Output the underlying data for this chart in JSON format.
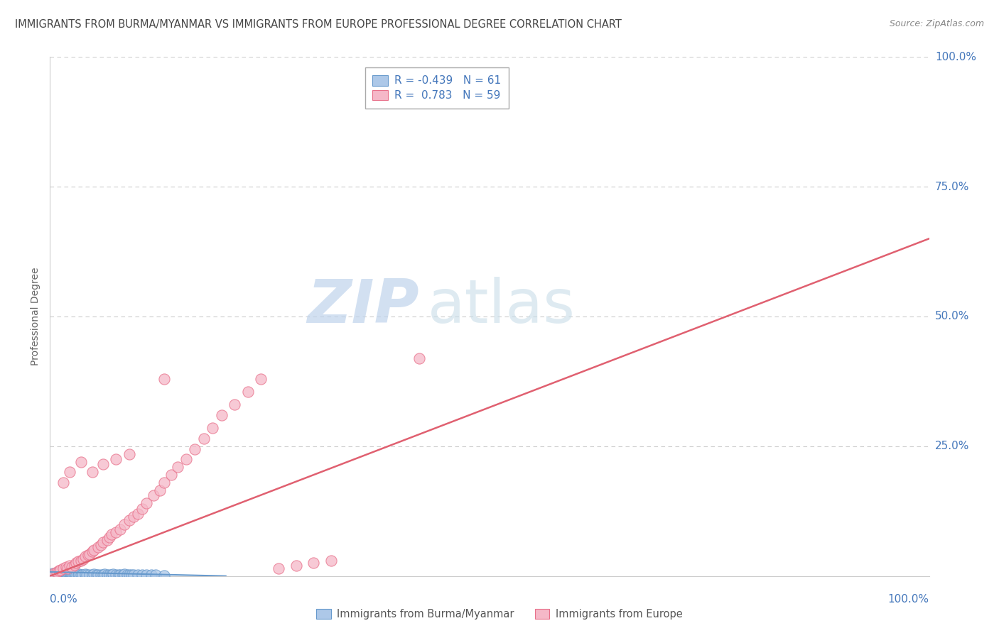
{
  "title": "IMMIGRANTS FROM BURMA/MYANMAR VS IMMIGRANTS FROM EUROPE PROFESSIONAL DEGREE CORRELATION CHART",
  "source": "Source: ZipAtlas.com",
  "ylabel": "Professional Degree",
  "legend_label_blue": "Immigrants from Burma/Myanmar",
  "legend_label_pink": "Immigrants from Europe",
  "R_blue": -0.439,
  "N_blue": 61,
  "R_pink": 0.783,
  "N_pink": 59,
  "blue_fill_color": "#adc8e8",
  "blue_edge_color": "#6699cc",
  "pink_fill_color": "#f5b8c8",
  "pink_edge_color": "#e8708a",
  "pink_line_color": "#e06070",
  "blue_line_color": "#6699cc",
  "axis_label_color": "#4477bb",
  "grid_color": "#cccccc",
  "title_color": "#444444",
  "source_color": "#888888",
  "ylabel_color": "#666666",
  "watermark_zip_color": "#c8ddf0",
  "watermark_atlas_color": "#c8ddf0",
  "xlim": [
    0,
    1.0
  ],
  "ylim": [
    0,
    1.0
  ],
  "ytick_positions": [
    0.25,
    0.5,
    0.75,
    1.0
  ],
  "ytick_labels": [
    "25.0%",
    "50.0%",
    "75.0%",
    "100.0%"
  ],
  "blue_line_x": [
    0.0,
    0.2
  ],
  "blue_line_y": [
    0.008,
    0.0
  ],
  "pink_line_x": [
    0.0,
    1.0
  ],
  "pink_line_y": [
    0.0,
    0.65
  ],
  "blue_pts_x": [
    0.002,
    0.003,
    0.004,
    0.005,
    0.006,
    0.007,
    0.008,
    0.009,
    0.01,
    0.011,
    0.012,
    0.013,
    0.014,
    0.015,
    0.016,
    0.017,
    0.018,
    0.019,
    0.02,
    0.021,
    0.022,
    0.023,
    0.024,
    0.025,
    0.026,
    0.027,
    0.028,
    0.03,
    0.032,
    0.033,
    0.035,
    0.037,
    0.04,
    0.042,
    0.045,
    0.048,
    0.05,
    0.053,
    0.055,
    0.058,
    0.06,
    0.062,
    0.065,
    0.068,
    0.07,
    0.072,
    0.075,
    0.078,
    0.08,
    0.083,
    0.085,
    0.088,
    0.09,
    0.093,
    0.095,
    0.1,
    0.105,
    0.11,
    0.115,
    0.12,
    0.13
  ],
  "blue_pts_y": [
    0.003,
    0.005,
    0.002,
    0.004,
    0.003,
    0.006,
    0.002,
    0.004,
    0.003,
    0.005,
    0.002,
    0.004,
    0.003,
    0.002,
    0.005,
    0.003,
    0.004,
    0.002,
    0.003,
    0.005,
    0.002,
    0.004,
    0.003,
    0.002,
    0.004,
    0.003,
    0.005,
    0.002,
    0.003,
    0.004,
    0.002,
    0.003,
    0.004,
    0.002,
    0.003,
    0.002,
    0.004,
    0.003,
    0.002,
    0.003,
    0.002,
    0.004,
    0.003,
    0.002,
    0.003,
    0.004,
    0.002,
    0.003,
    0.002,
    0.003,
    0.004,
    0.002,
    0.003,
    0.002,
    0.003,
    0.002,
    0.003,
    0.002,
    0.003,
    0.002,
    0.001
  ],
  "pink_pts_x": [
    0.005,
    0.008,
    0.01,
    0.012,
    0.015,
    0.018,
    0.02,
    0.022,
    0.025,
    0.028,
    0.03,
    0.032,
    0.035,
    0.038,
    0.04,
    0.043,
    0.045,
    0.048,
    0.05,
    0.055,
    0.058,
    0.06,
    0.065,
    0.068,
    0.07,
    0.075,
    0.08,
    0.085,
    0.09,
    0.095,
    0.1,
    0.105,
    0.11,
    0.118,
    0.125,
    0.13,
    0.138,
    0.145,
    0.155,
    0.165,
    0.175,
    0.185,
    0.195,
    0.21,
    0.225,
    0.24,
    0.26,
    0.28,
    0.3,
    0.32,
    0.015,
    0.022,
    0.035,
    0.048,
    0.06,
    0.075,
    0.09,
    0.13,
    0.42
  ],
  "pink_pts_y": [
    0.005,
    0.008,
    0.01,
    0.012,
    0.015,
    0.018,
    0.015,
    0.02,
    0.018,
    0.022,
    0.025,
    0.028,
    0.03,
    0.032,
    0.038,
    0.04,
    0.042,
    0.048,
    0.05,
    0.055,
    0.06,
    0.065,
    0.07,
    0.075,
    0.08,
    0.085,
    0.09,
    0.1,
    0.108,
    0.115,
    0.12,
    0.13,
    0.14,
    0.155,
    0.165,
    0.18,
    0.195,
    0.21,
    0.225,
    0.245,
    0.265,
    0.285,
    0.31,
    0.33,
    0.355,
    0.38,
    0.015,
    0.02,
    0.025,
    0.03,
    0.18,
    0.2,
    0.22,
    0.2,
    0.215,
    0.225,
    0.235,
    0.38,
    0.42
  ]
}
